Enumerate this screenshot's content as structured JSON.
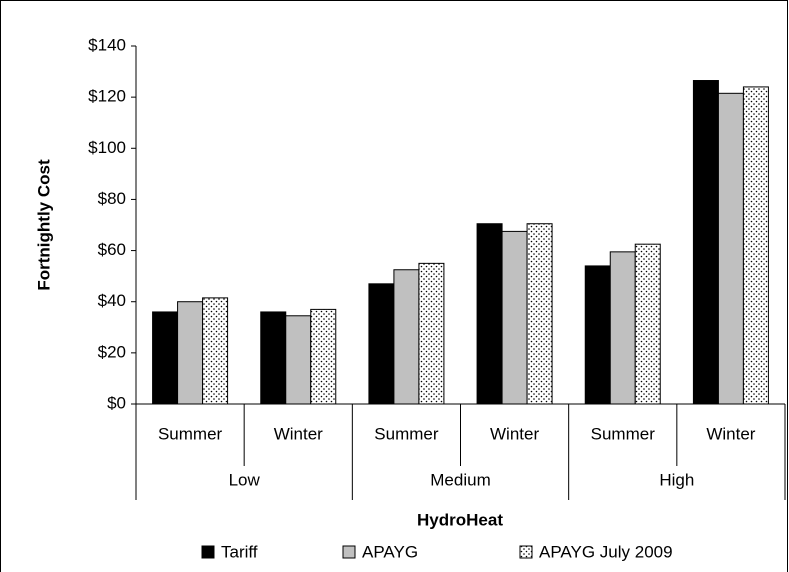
{
  "chart_data": {
    "type": "bar",
    "groups": [
      {
        "label": "Low",
        "categories": [
          "Summer",
          "Winter"
        ]
      },
      {
        "label": "Medium",
        "categories": [
          "Summer",
          "Winter"
        ]
      },
      {
        "label": "High",
        "categories": [
          "Summer",
          "Winter"
        ]
      }
    ],
    "x_label": "HydroHeat",
    "y_label": "Fortnightly Cost",
    "series": [
      {
        "name": "Tariff",
        "color": "#000000",
        "values": [
          36,
          36,
          47,
          70.5,
          54,
          126.5
        ]
      },
      {
        "name": "APAYG",
        "color": "#c0c0c0",
        "values": [
          40,
          34.5,
          52.5,
          67.5,
          59.5,
          121.5
        ]
      },
      {
        "name": "APAYG July 2009",
        "color": "#ffffff",
        "pattern": "dots",
        "values": [
          41.5,
          37,
          55,
          70.5,
          62.5,
          124
        ]
      }
    ],
    "ylim": [
      0,
      140
    ],
    "yticks": [
      {
        "value": 0,
        "label": "$0"
      },
      {
        "value": 20,
        "label": "$20"
      },
      {
        "value": 40,
        "label": "$40"
      },
      {
        "value": 60,
        "label": "$60"
      },
      {
        "value": 80,
        "label": "$80"
      },
      {
        "value": 100,
        "label": "$100"
      },
      {
        "value": 120,
        "label": "$120"
      },
      {
        "value": 140,
        "label": "$140"
      }
    ],
    "grid": false,
    "legend": "bottom"
  }
}
